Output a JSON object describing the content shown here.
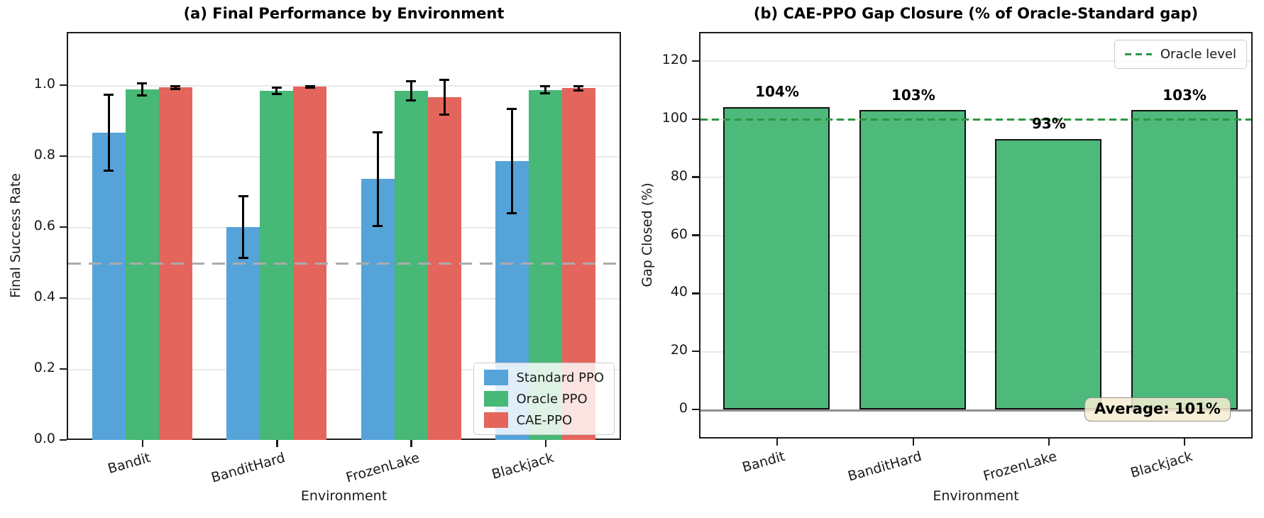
{
  "figure": {
    "background": "#ffffff",
    "panel_a_title": "(a) Final Performance by Environment",
    "panel_b_title": "(b) CAE-PPO Gap Closure (% of Oracle-Standard gap)"
  },
  "colors": {
    "standard_ppo": "#56A3DA",
    "oracle_ppo": "#47B876",
    "cae_ppo": "#E4655C",
    "gap_bar_fill": "#4DB97A",
    "gap_bar_edge": "#111111",
    "oracle_level_line": "#2D9642",
    "chance_line": "#ABABAB",
    "grid": "#e9e9e9",
    "annotation_bg": "#F7EDD1"
  },
  "chart_data": [
    {
      "type": "bar",
      "title": "(a) Final Performance by Environment",
      "xlabel": "Environment",
      "ylabel": "Final Success Rate",
      "categories": [
        "Bandit",
        "BanditHard",
        "FrozenLake",
        "Blackjack"
      ],
      "series": [
        {
          "name": "Standard PPO",
          "color": "#56A3DA",
          "values": [
            0.865,
            0.6,
            0.735,
            0.785
          ],
          "errors": [
            0.11,
            0.09,
            0.135,
            0.15
          ]
        },
        {
          "name": "Oracle PPO",
          "color": "#47B876",
          "values": [
            0.988,
            0.984,
            0.983,
            0.986
          ],
          "errors": [
            0.02,
            0.012,
            0.03,
            0.013
          ]
        },
        {
          "name": "CAE-PPO",
          "color": "#E4655C",
          "values": [
            0.993,
            0.995,
            0.965,
            0.991
          ],
          "errors": [
            0.007,
            0.005,
            0.052,
            0.009
          ]
        }
      ],
      "yticks": [
        0.0,
        0.2,
        0.4,
        0.6,
        0.8,
        1.0
      ],
      "ytick_labels": [
        "0.0",
        "0.2",
        "0.4",
        "0.6",
        "0.8",
        "1.0"
      ],
      "ylim": [
        0,
        1.15
      ],
      "grid": true,
      "reference_line": {
        "y": 0.5,
        "style": "dashed",
        "color": "#ABABAB"
      },
      "legend_position": "lower right"
    },
    {
      "type": "bar",
      "title": "(b) CAE-PPO Gap Closure (% of Oracle-Standard gap)",
      "xlabel": "Environment",
      "ylabel": "Gap Closed (%)",
      "categories": [
        "Bandit",
        "BanditHard",
        "FrozenLake",
        "Blackjack"
      ],
      "values": [
        104,
        103,
        93,
        103
      ],
      "bar_labels": [
        "104%",
        "103%",
        "93%",
        "103%"
      ],
      "bar_color": "#4DB97A",
      "bar_edge_color": "#111111",
      "yticks": [
        0,
        20,
        40,
        60,
        80,
        100,
        120
      ],
      "ytick_labels": [
        "0",
        "20",
        "40",
        "60",
        "80",
        "100",
        "120"
      ],
      "ylim": [
        -10,
        130
      ],
      "grid": true,
      "reference_line": {
        "y": 100,
        "style": "dashed",
        "color": "#2D9642",
        "label": "Oracle level"
      },
      "zero_line": {
        "y": 0,
        "color": "#8f8f8f"
      },
      "annotation": "Average: 101%",
      "legend_position": "upper right"
    }
  ]
}
